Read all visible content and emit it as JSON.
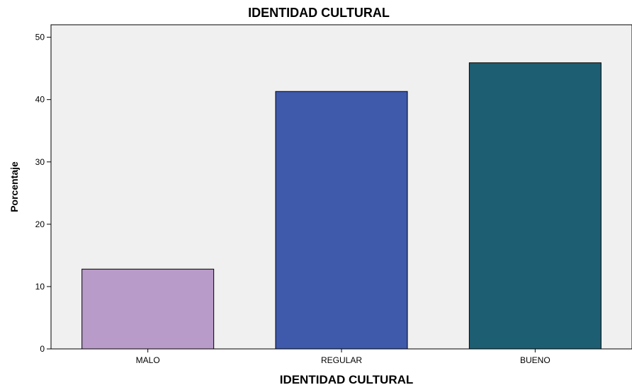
{
  "chart_data": {
    "type": "bar",
    "title": "IDENTIDAD CULTURAL",
    "xlabel": "IDENTIDAD CULTURAL",
    "ylabel": "Porcentaje",
    "categories": [
      "MALO",
      "REGULAR",
      "BUENO"
    ],
    "values": [
      12.8,
      41.3,
      45.9
    ],
    "colors": [
      "#b89bc8",
      "#3f5aab",
      "#1d5e72"
    ],
    "ylim": [
      0,
      52
    ],
    "yticks": [
      0,
      10,
      20,
      30,
      40,
      50
    ],
    "grid": false,
    "legend": "none",
    "plot_background": "#f0f0f0"
  }
}
